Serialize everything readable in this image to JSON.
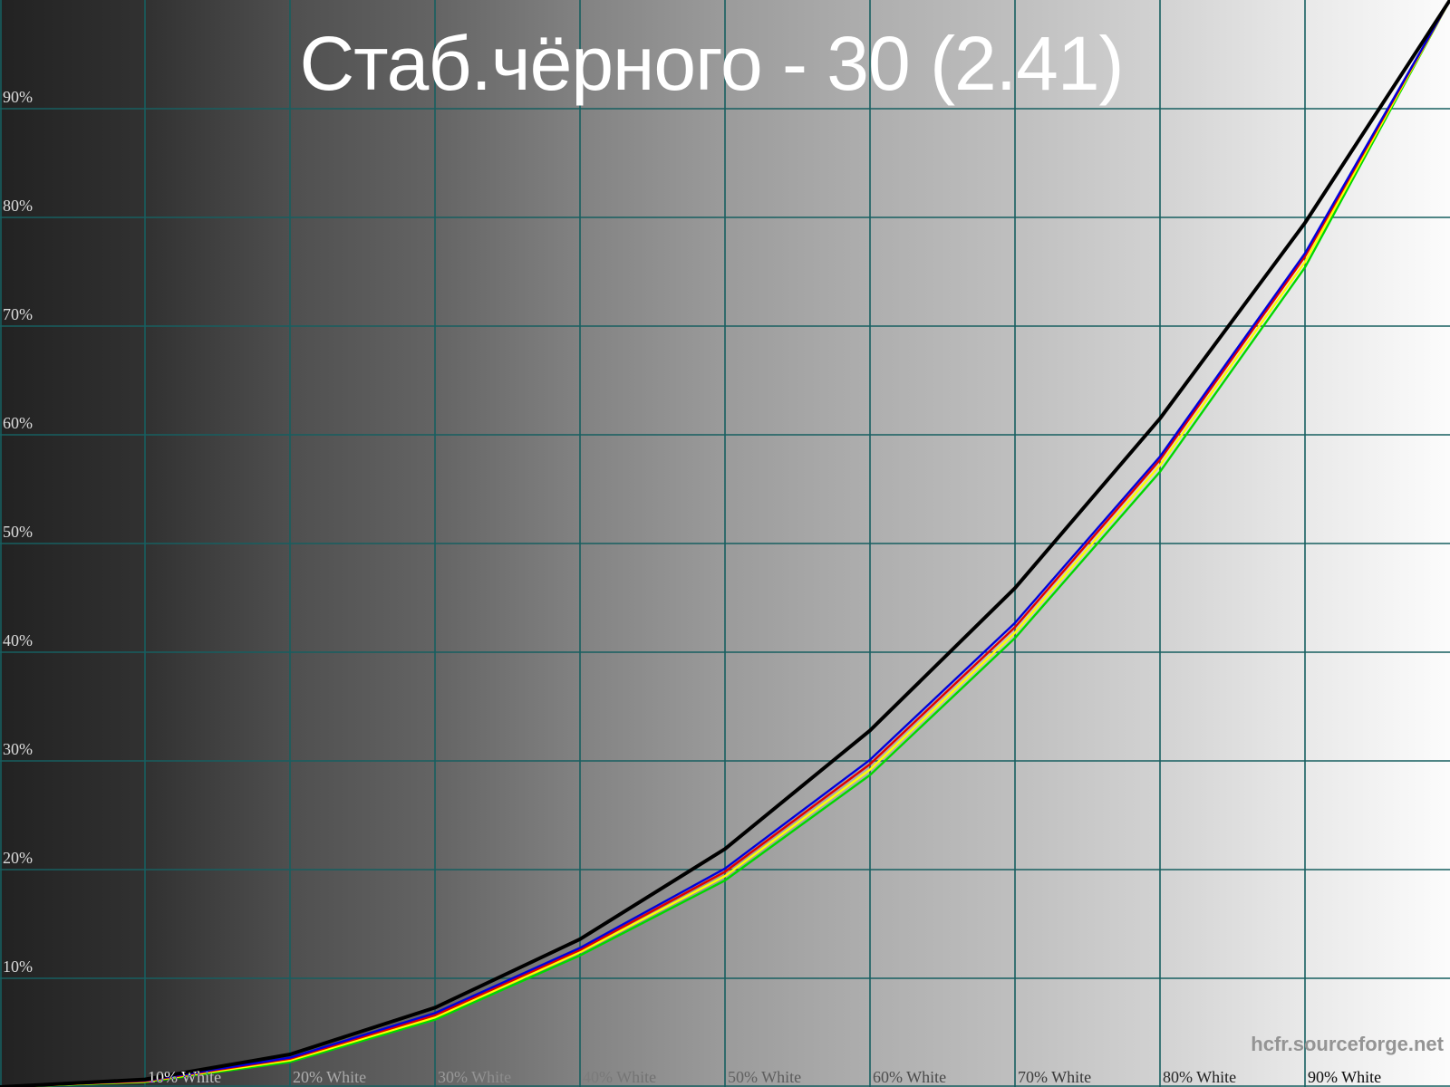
{
  "watermark": "hcfr.sourceforge.net",
  "chart_data": {
    "type": "line",
    "title": "Стаб.чёрного - 30 (2.41)",
    "xlabel": "",
    "ylabel": "",
    "xlim": [
      0,
      100
    ],
    "ylim": [
      0,
      100
    ],
    "grid": true,
    "grid_color": "#175f60",
    "legend": "none",
    "x_tick_values": [
      10,
      20,
      30,
      40,
      50,
      60,
      70,
      80,
      90
    ],
    "x_tick_labels": [
      "10% White",
      "20% White",
      "30% White",
      "40% White",
      "50% White",
      "60% White",
      "70% White",
      "80% White",
      "90% White"
    ],
    "y_tick_values": [
      10,
      20,
      30,
      40,
      50,
      60,
      70,
      80,
      90
    ],
    "y_tick_labels": [
      "10%",
      "20%",
      "30%",
      "40%",
      "50%",
      "60%",
      "70%",
      "80%",
      "90%"
    ],
    "background_ramp": [
      "#222222",
      "#313131",
      "#4f4f4f",
      "#646464",
      "#828282",
      "#9b9b9b",
      "#aeaeae",
      "#bfbfbf",
      "#d2d2d2",
      "#e9e9e9",
      "#fcfcfc"
    ],
    "x": [
      0,
      10,
      20,
      30,
      40,
      50,
      60,
      70,
      80,
      90,
      100
    ],
    "series": [
      {
        "name": "green",
        "color": "#00d800",
        "values": [
          0,
          0.45,
          2.3,
          6.2,
          12.1,
          19.0,
          28.7,
          41.3,
          56.6,
          75.4,
          100
        ]
      },
      {
        "name": "yellow",
        "color": "#ffff00",
        "values": [
          0,
          0.5,
          2.45,
          6.4,
          12.4,
          19.4,
          29.2,
          41.8,
          57.2,
          75.9,
          100
        ]
      },
      {
        "name": "red",
        "color": "#e00000",
        "values": [
          0,
          0.55,
          2.6,
          6.6,
          12.6,
          19.8,
          29.7,
          42.3,
          57.7,
          76.4,
          100
        ]
      },
      {
        "name": "blue",
        "color": "#0000dd",
        "values": [
          0,
          0.6,
          2.7,
          6.8,
          12.8,
          20.1,
          30.1,
          42.7,
          58.0,
          76.7,
          100
        ]
      },
      {
        "name": "reference",
        "color": "#000000",
        "values": [
          0,
          0.7,
          3.0,
          7.3,
          13.6,
          21.9,
          32.8,
          45.9,
          61.5,
          79.5,
          100
        ]
      }
    ]
  }
}
